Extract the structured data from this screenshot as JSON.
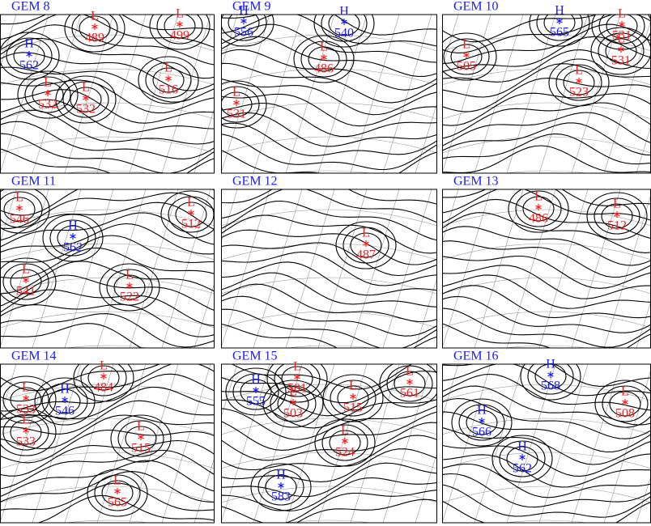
{
  "panels": [
    {
      "title": "GEM 8",
      "centers": [
        {
          "type": "H",
          "value": 562
        },
        {
          "type": "L",
          "value": 489
        },
        {
          "type": "L",
          "value": 499
        },
        {
          "type": "L",
          "value": 516
        },
        {
          "type": "L",
          "value": 532
        },
        {
          "type": "L",
          "value": 532
        }
      ]
    },
    {
      "title": "GEM 9",
      "centers": [
        {
          "type": "H",
          "value": 556
        },
        {
          "type": "H",
          "value": 540
        },
        {
          "type": "L",
          "value": 486
        },
        {
          "type": "L",
          "value": 531
        }
      ]
    },
    {
      "title": "GEM 10",
      "centers": [
        {
          "type": "H",
          "value": 565
        },
        {
          "type": "L",
          "value": 531
        },
        {
          "type": "L",
          "value": 531
        },
        {
          "type": "L",
          "value": 505
        },
        {
          "type": "L",
          "value": 523
        }
      ]
    },
    {
      "title": "GEM 11",
      "centers": [
        {
          "type": "L",
          "value": 546
        },
        {
          "type": "H",
          "value": 562
        },
        {
          "type": "L",
          "value": 512
        },
        {
          "type": "L",
          "value": 541
        },
        {
          "type": "L",
          "value": 522
        }
      ]
    },
    {
      "title": "GEM 12",
      "centers": [
        {
          "type": "L",
          "value": 487
        }
      ]
    },
    {
      "title": "GEM 13",
      "centers": [
        {
          "type": "L",
          "value": 486
        },
        {
          "type": "L",
          "value": 512
        }
      ]
    },
    {
      "title": "GEM 14",
      "centers": [
        {
          "type": "L",
          "value": 533
        },
        {
          "type": "L",
          "value": 533
        },
        {
          "type": "H",
          "value": 546
        },
        {
          "type": "L",
          "value": 484
        },
        {
          "type": "L",
          "value": 515
        },
        {
          "type": "L",
          "value": 565
        }
      ]
    },
    {
      "title": "GEM 15",
      "centers": [
        {
          "type": "H",
          "value": 555
        },
        {
          "type": "L",
          "value": 501
        },
        {
          "type": "L",
          "value": 503
        },
        {
          "type": "L",
          "value": 515
        },
        {
          "type": "L",
          "value": 561
        },
        {
          "type": "L",
          "value": 524
        },
        {
          "type": "H",
          "value": 583
        }
      ]
    },
    {
      "title": "GEM 16",
      "centers": [
        {
          "type": "H",
          "value": 568
        },
        {
          "type": "L",
          "value": 508
        },
        {
          "type": "H",
          "value": 566
        },
        {
          "type": "H",
          "value": 562
        }
      ]
    }
  ]
}
